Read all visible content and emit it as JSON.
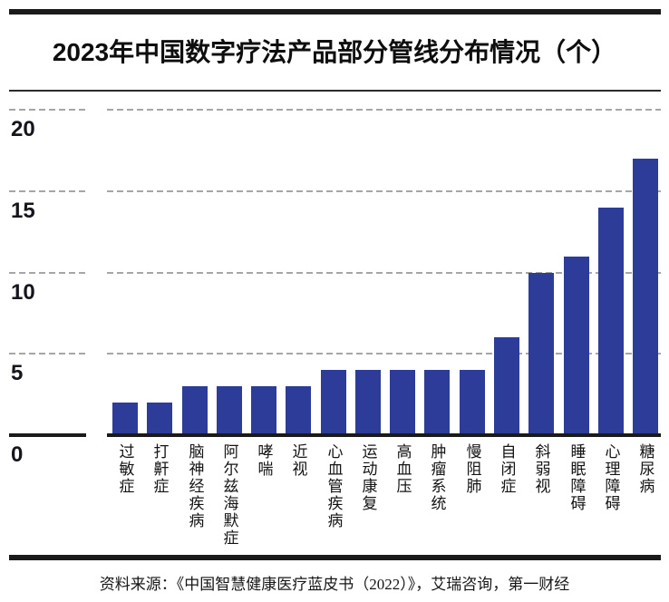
{
  "page": {
    "title": "2023年中国数字疗法产品部分管线分布情况（个）",
    "source_note": "资料来源：《中国智慧健康医疗蓝皮书（2022）》，艾瑞咨询，第一财经"
  },
  "colors": {
    "bar": "#2d3c99",
    "grid_dash": "#a6a6a6",
    "axis_line": "#1a1a1a",
    "text": "#141414"
  },
  "chart_data": {
    "type": "bar",
    "title": "2023年中国数字疗法产品部分管线分布情况（个）",
    "categories": [
      "过敏症",
      "打鼾症",
      "脑神经疾病",
      "阿尔兹海默症",
      "哮喘",
      "近视",
      "心血管疾病",
      "运动康复",
      "高血压",
      "肿瘤系统",
      "慢阻肺",
      "自闭症",
      "斜弱视",
      "睡眠障碍",
      "心理障碍",
      "糖尿病"
    ],
    "values": [
      2,
      2,
      3,
      3,
      3,
      3,
      4,
      4,
      4,
      4,
      4,
      6,
      10,
      11,
      14,
      17
    ],
    "xlabel": "",
    "ylabel": "",
    "yticks": [
      0,
      5,
      10,
      15,
      20
    ],
    "ylim": [
      0,
      21
    ],
    "grid": "horizontal-dashed",
    "legend": "none",
    "bar_color": "#2d3c99",
    "source": "资料来源：《中国智慧健康医疗蓝皮书（2022）》，艾瑞咨询，第一财经"
  }
}
